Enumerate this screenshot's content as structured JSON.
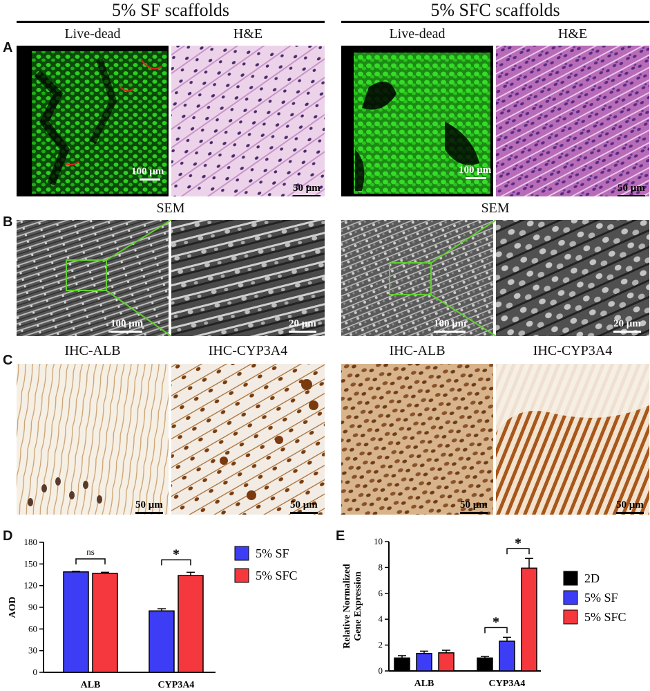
{
  "groups": {
    "sf": "5% SF scaffolds",
    "sfc": "5% SFC scaffolds"
  },
  "panels": {
    "a": "A",
    "b": "B",
    "c": "C",
    "d": "D",
    "e": "E"
  },
  "row_a": {
    "labels": {
      "live_dead": "Live-dead",
      "he": "H&E"
    },
    "scales": {
      "live_dead": "100 μm",
      "he": "50 μm"
    }
  },
  "row_b": {
    "label": "SEM",
    "scales": {
      "low": "100 μm",
      "high": "20 μm"
    }
  },
  "row_c": {
    "labels": {
      "alb": "IHC-ALB",
      "cyp": "IHC-CYP3A4"
    },
    "scales": {
      "alb": "50 μm",
      "cyp": "50 μm"
    }
  },
  "colors": {
    "live": "#22c41a",
    "dead": "#e02020",
    "he_bg": "#e7c8e6",
    "he_nuclei": "#4a2c6a",
    "sem": "#6e6e6e",
    "ihc_bg": "#f4ece0",
    "ihc_brown": "#8a4a16",
    "sem_box": "#5fd12d",
    "sf": "#3d3df5",
    "sfc": "#f5383d",
    "twod": "#000000"
  },
  "chart_data": [
    {
      "type": "bar",
      "ylabel": "AOD",
      "categories": [
        "ALB",
        "CYP3A4"
      ],
      "ylim": [
        0,
        180
      ],
      "yticks": [
        "0",
        "30",
        "60",
        "90",
        "120",
        "150",
        "180"
      ],
      "legend": "right",
      "series": [
        {
          "name": "5% SF",
          "values": [
            139,
            85
          ],
          "errors": [
            0.8,
            3
          ]
        },
        {
          "name": "5% SFC",
          "values": [
            137,
            134
          ],
          "errors": [
            1.5,
            4.5
          ]
        }
      ],
      "annotations": [
        {
          "category": "ALB",
          "text": "ns"
        },
        {
          "category": "CYP3A4",
          "text": "*"
        }
      ]
    },
    {
      "type": "bar",
      "ylabel": "Relative Normalized Gene Expression",
      "categories": [
        "ALB",
        "CYP3A4"
      ],
      "ylim": [
        0,
        10
      ],
      "yticks": [
        "0",
        "2",
        "4",
        "6",
        "8",
        "10"
      ],
      "legend": "right",
      "series": [
        {
          "name": "2D",
          "values": [
            1.0,
            1.0
          ],
          "errors": [
            0.18,
            0.12
          ]
        },
        {
          "name": "5% SF",
          "values": [
            1.35,
            2.3
          ],
          "errors": [
            0.18,
            0.3
          ]
        },
        {
          "name": "5% SFC",
          "values": [
            1.4,
            7.95
          ],
          "errors": [
            0.2,
            0.75
          ]
        }
      ],
      "annotations": [
        {
          "between": [
            "2D",
            "5% SF"
          ],
          "category": "CYP3A4",
          "text": "*"
        },
        {
          "between": [
            "5% SF",
            "5% SFC"
          ],
          "category": "CYP3A4",
          "text": "*"
        }
      ]
    }
  ]
}
